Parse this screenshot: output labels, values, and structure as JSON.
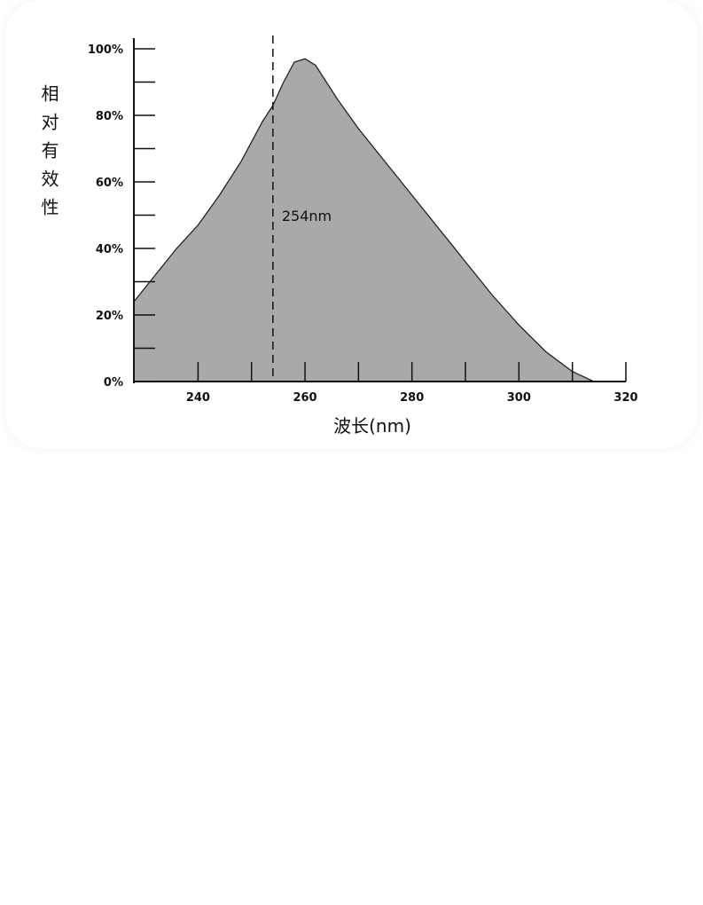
{
  "chart_data": {
    "type": "area",
    "ylabel": "相对有效性",
    "xlabel": "波长(nm)",
    "annotation": "254nm",
    "vline": 254,
    "color": "#a9a9a9",
    "x": [
      228,
      232,
      236,
      240,
      244,
      248,
      252,
      254,
      256,
      258,
      260,
      262,
      264,
      266,
      270,
      275,
      280,
      285,
      290,
      295,
      300,
      305,
      310,
      314
    ],
    "values": [
      24,
      32,
      40,
      47,
      56,
      66,
      78,
      83,
      90,
      96,
      97,
      95,
      90,
      85,
      76,
      66,
      56,
      46,
      36,
      26,
      17,
      9,
      3,
      0
    ],
    "xlim": [
      228,
      320
    ],
    "ylim": [
      0,
      100
    ],
    "xticks": [
      240,
      260,
      280,
      300,
      320
    ],
    "xminorticks": [
      250,
      270,
      290,
      310
    ],
    "yticks": [
      {
        "value": 0,
        "label": "0%"
      },
      {
        "value": 20,
        "label": "20%"
      },
      {
        "value": 40,
        "label": "40%"
      },
      {
        "value": 60,
        "label": "60%"
      },
      {
        "value": 80,
        "label": "80%"
      },
      {
        "value": 100,
        "label": "100%"
      }
    ],
    "yminorticks": [
      10,
      30,
      50,
      70,
      90
    ]
  }
}
